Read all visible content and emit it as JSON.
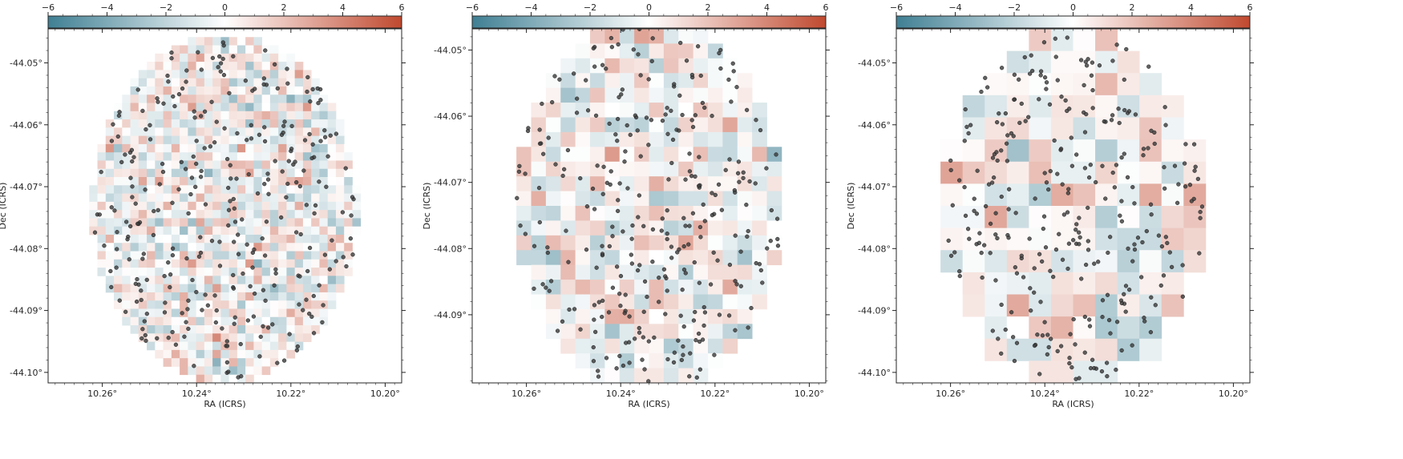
{
  "chart_data": [
    {
      "type": "heatmap",
      "xlabel": "RA (ICRS)",
      "ylabel": "Dec (ICRS)",
      "colorbar": {
        "ticks": [
          "−6",
          "−4",
          "−2",
          "0",
          "2",
          "4",
          "6"
        ],
        "range": [
          -6,
          6
        ],
        "colors": [
          "#3f7f93",
          "#ffffff",
          "#c0492f"
        ],
        "position": "top"
      },
      "x_ticks": [
        "10.26°",
        "10.24°",
        "10.22°",
        "10.20°"
      ],
      "x_tick_values": [
        10.26,
        10.24,
        10.22,
        10.2
      ],
      "y_ticks": [
        "-44.05°",
        "-44.06°",
        "-44.07°",
        "-44.08°",
        "-44.09°",
        "-44.10°"
      ],
      "y_tick_values": [
        -44.05,
        -44.06,
        -44.07,
        -44.08,
        -44.09,
        -44.1
      ],
      "xlim": [
        10.2715,
        10.1965
      ],
      "ylim": [
        -44.1017,
        -44.0445
      ],
      "grid_cells": [
        43,
        43
      ],
      "center": [
        10.234,
        -44.0735
      ],
      "radius_deg": 0.0282,
      "points": 300,
      "seed": 11
    },
    {
      "type": "heatmap",
      "xlabel": "RA (ICRS)",
      "ylabel": "Dec (ICRS)",
      "colorbar": {
        "ticks": [
          "−6",
          "−4",
          "−2",
          "0",
          "2",
          "4",
          "6"
        ],
        "range": [
          -6,
          6
        ],
        "colors": [
          "#3f7f93",
          "#ffffff",
          "#c0492f"
        ],
        "position": "top"
      },
      "x_ticks": [
        "10.26°",
        "10.24°",
        "10.22°",
        "10.20°"
      ],
      "x_tick_values": [
        10.26,
        10.24,
        10.22,
        10.2
      ],
      "y_ticks": [
        "-44.05°",
        "-44.06°",
        "-44.07°",
        "-44.08°",
        "-44.09°"
      ],
      "y_tick_values": [
        -44.05,
        -44.06,
        -44.07,
        -44.08,
        -44.09
      ],
      "xlim": [
        10.2715,
        10.1965
      ],
      "ylim": [
        -44.1003,
        -44.0468
      ],
      "grid_cells": [
        24,
        24
      ],
      "center": [
        10.234,
        -44.0735
      ],
      "radius_deg": 0.0282,
      "points": 300,
      "seed": 23
    },
    {
      "type": "heatmap",
      "xlabel": "RA (ICRS)",
      "ylabel": "Dec (ICRS)",
      "colorbar": {
        "ticks": [
          "−6",
          "−4",
          "−2",
          "0",
          "2",
          "4",
          "6"
        ],
        "range": [
          -6,
          6
        ],
        "colors": [
          "#3f7f93",
          "#ffffff",
          "#c0492f"
        ],
        "position": "top"
      },
      "x_ticks": [
        "10.26°",
        "10.24°",
        "10.22°",
        "10.20°"
      ],
      "x_tick_values": [
        10.26,
        10.24,
        10.22,
        10.2
      ],
      "y_ticks": [
        "-44.05°",
        "-44.06°",
        "-44.07°",
        "-44.08°",
        "-44.09°",
        "-44.10°"
      ],
      "y_tick_values": [
        -44.05,
        -44.06,
        -44.07,
        -44.08,
        -44.09,
        -44.1
      ],
      "xlim": [
        10.2715,
        10.1965
      ],
      "ylim": [
        -44.1017,
        -44.0445
      ],
      "grid_cells": [
        16,
        16
      ],
      "center": [
        10.234,
        -44.0735
      ],
      "radius_deg": 0.0282,
      "points": 300,
      "seed": 37
    }
  ]
}
